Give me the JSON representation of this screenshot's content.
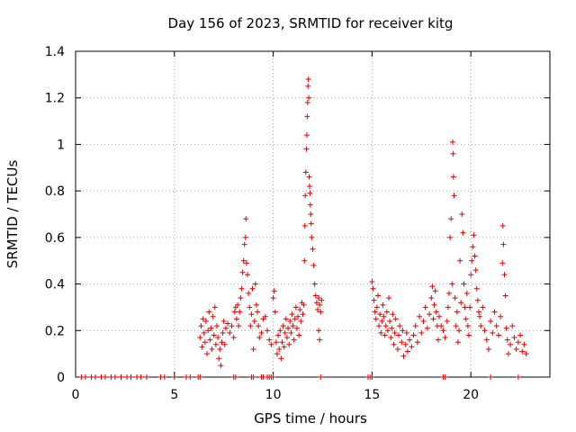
{
  "chart_data": {
    "type": "scatter",
    "title": "Day 156 of 2023, SRMTID for receiver kitg",
    "xlabel": "GPS time / hours",
    "ylabel": "SRMTID / TECUs",
    "xlim": [
      0,
      24
    ],
    "ylim": [
      0,
      1.4
    ],
    "xticks": [
      0,
      5,
      10,
      15,
      20
    ],
    "yticks": [
      0,
      0.2,
      0.4,
      0.6,
      0.8,
      1,
      1.2,
      1.4
    ],
    "xtick_labels": [
      "0",
      "5",
      "10",
      "15",
      "20"
    ],
    "ytick_labels": [
      "0",
      "0.2",
      "0.4",
      "0.6",
      "0.8",
      "1",
      "1.2",
      "1.4"
    ],
    "grid": true,
    "marker": "+",
    "color": "#e00000",
    "series": [
      {
        "name": "SRMTID",
        "points": [
          [
            0.3,
            0
          ],
          [
            0.5,
            0
          ],
          [
            0.8,
            0
          ],
          [
            1.0,
            0
          ],
          [
            1.3,
            0
          ],
          [
            1.5,
            0
          ],
          [
            1.8,
            0
          ],
          [
            2.0,
            0
          ],
          [
            2.3,
            0
          ],
          [
            2.6,
            0
          ],
          [
            2.8,
            0
          ],
          [
            3.1,
            0
          ],
          [
            3.3,
            0
          ],
          [
            3.6,
            0
          ],
          [
            4.3,
            0
          ],
          [
            4.5,
            0
          ],
          [
            5.0,
            0
          ],
          [
            5.6,
            0
          ],
          [
            5.8,
            0
          ],
          [
            6.2,
            0
          ],
          [
            6.3,
            0
          ],
          [
            8.0,
            0
          ],
          [
            8.1,
            0
          ],
          [
            8.9,
            0
          ],
          [
            9.0,
            0
          ],
          [
            9.4,
            0
          ],
          [
            9.5,
            0
          ],
          [
            9.7,
            0
          ],
          [
            9.8,
            0
          ],
          [
            9.9,
            0
          ],
          [
            10.0,
            0
          ],
          [
            12.4,
            0
          ],
          [
            14.8,
            0
          ],
          [
            14.9,
            0
          ],
          [
            15.0,
            0
          ],
          [
            18.6,
            0
          ],
          [
            18.7,
            0
          ],
          [
            21.0,
            0
          ],
          [
            22.4,
            0
          ],
          [
            6.3,
            0.17
          ],
          [
            6.35,
            0.22
          ],
          [
            6.4,
            0.13
          ],
          [
            6.45,
            0.25
          ],
          [
            6.5,
            0.19
          ],
          [
            6.55,
            0.15
          ],
          [
            6.6,
            0.24
          ],
          [
            6.65,
            0.1
          ],
          [
            6.7,
            0.2
          ],
          [
            6.75,
            0.28
          ],
          [
            6.8,
            0.16
          ],
          [
            6.85,
            0.21
          ],
          [
            6.9,
            0.12
          ],
          [
            6.95,
            0.26
          ],
          [
            7.0,
            0.18
          ],
          [
            7.05,
            0.3
          ],
          [
            7.1,
            0.14
          ],
          [
            7.15,
            0.22
          ],
          [
            7.2,
            0.17
          ],
          [
            7.25,
            0.08
          ],
          [
            7.3,
            0.12
          ],
          [
            7.35,
            0.05
          ],
          [
            7.4,
            0.15
          ],
          [
            7.45,
            0.19
          ],
          [
            7.5,
            0.24
          ],
          [
            7.55,
            0.14
          ],
          [
            7.6,
            0.21
          ],
          [
            7.7,
            0.23
          ],
          [
            7.8,
            0.19
          ],
          [
            7.9,
            0.22
          ],
          [
            8.0,
            0.17
          ],
          [
            8.05,
            0.28
          ],
          [
            8.1,
            0.3
          ],
          [
            8.15,
            0.25
          ],
          [
            8.2,
            0.31
          ],
          [
            8.25,
            0.22
          ],
          [
            8.3,
            0.28
          ],
          [
            8.35,
            0.34
          ],
          [
            8.4,
            0.38
          ],
          [
            8.45,
            0.45
          ],
          [
            8.5,
            0.5
          ],
          [
            8.55,
            0.57
          ],
          [
            8.6,
            0.6
          ],
          [
            8.62,
            0.68
          ],
          [
            8.65,
            0.49
          ],
          [
            8.7,
            0.44
          ],
          [
            8.75,
            0.36
          ],
          [
            8.8,
            0.3
          ],
          [
            8.85,
            0.22
          ],
          [
            8.9,
            0.27
          ],
          [
            8.95,
            0.38
          ],
          [
            9.0,
            0.12
          ],
          [
            9.05,
            0.24
          ],
          [
            9.1,
            0.4
          ],
          [
            9.15,
            0.31
          ],
          [
            9.2,
            0.28
          ],
          [
            9.25,
            0.22
          ],
          [
            9.3,
            0.17
          ],
          [
            9.4,
            0.19
          ],
          [
            9.5,
            0.25
          ],
          [
            9.6,
            0.26
          ],
          [
            9.7,
            0.2
          ],
          [
            9.8,
            0.16
          ],
          [
            9.9,
            0.14
          ],
          [
            10.0,
            0.34
          ],
          [
            10.05,
            0.37
          ],
          [
            10.1,
            0.28
          ],
          [
            10.15,
            0.15
          ],
          [
            10.2,
            0.1
          ],
          [
            10.25,
            0.18
          ],
          [
            10.3,
            0.12
          ],
          [
            10.35,
            0.2
          ],
          [
            10.4,
            0.08
          ],
          [
            10.45,
            0.15
          ],
          [
            10.5,
            0.22
          ],
          [
            10.55,
            0.13
          ],
          [
            10.6,
            0.19
          ],
          [
            10.65,
            0.25
          ],
          [
            10.7,
            0.17
          ],
          [
            10.75,
            0.21
          ],
          [
            10.8,
            0.14
          ],
          [
            10.85,
            0.24
          ],
          [
            10.9,
            0.19
          ],
          [
            10.95,
            0.27
          ],
          [
            11.0,
            0.22
          ],
          [
            11.05,
            0.16
          ],
          [
            11.1,
            0.25
          ],
          [
            11.15,
            0.3
          ],
          [
            11.2,
            0.21
          ],
          [
            11.25,
            0.26
          ],
          [
            11.3,
            0.18
          ],
          [
            11.35,
            0.29
          ],
          [
            11.4,
            0.24
          ],
          [
            11.45,
            0.32
          ],
          [
            11.5,
            0.27
          ],
          [
            11.55,
            0.31
          ],
          [
            11.58,
            0.5
          ],
          [
            11.6,
            0.65
          ],
          [
            11.62,
            0.78
          ],
          [
            11.65,
            0.88
          ],
          [
            11.68,
            0.98
          ],
          [
            11.7,
            1.04
          ],
          [
            11.72,
            1.12
          ],
          [
            11.74,
            1.18
          ],
          [
            11.76,
            1.25
          ],
          [
            11.78,
            1.28
          ],
          [
            11.8,
            1.2
          ],
          [
            11.82,
            0.86
          ],
          [
            11.84,
            0.82
          ],
          [
            11.86,
            0.79
          ],
          [
            11.88,
            0.74
          ],
          [
            11.9,
            0.7
          ],
          [
            11.92,
            0.66
          ],
          [
            11.95,
            0.6
          ],
          [
            12.0,
            0.55
          ],
          [
            12.05,
            0.48
          ],
          [
            12.1,
            0.4
          ],
          [
            12.15,
            0.35
          ],
          [
            12.2,
            0.32
          ],
          [
            12.25,
            0.29
          ],
          [
            12.3,
            0.34
          ],
          [
            12.35,
            0.31
          ],
          [
            12.4,
            0.28
          ],
          [
            12.45,
            0.33
          ],
          [
            12.3,
            0.2
          ],
          [
            12.35,
            0.16
          ],
          [
            15.0,
            0.41
          ],
          [
            15.05,
            0.38
          ],
          [
            15.1,
            0.33
          ],
          [
            15.15,
            0.28
          ],
          [
            15.2,
            0.25
          ],
          [
            15.25,
            0.3
          ],
          [
            15.3,
            0.35
          ],
          [
            15.35,
            0.22
          ],
          [
            15.4,
            0.27
          ],
          [
            15.45,
            0.19
          ],
          [
            15.5,
            0.24
          ],
          [
            15.55,
            0.31
          ],
          [
            15.6,
            0.26
          ],
          [
            15.65,
            0.18
          ],
          [
            15.7,
            0.22
          ],
          [
            15.75,
            0.28
          ],
          [
            15.8,
            0.2
          ],
          [
            15.85,
            0.34
          ],
          [
            15.9,
            0.24
          ],
          [
            15.95,
            0.17
          ],
          [
            16.0,
            0.21
          ],
          [
            16.05,
            0.27
          ],
          [
            16.1,
            0.14
          ],
          [
            16.15,
            0.19
          ],
          [
            16.2,
            0.25
          ],
          [
            16.3,
            0.12
          ],
          [
            16.35,
            0.18
          ],
          [
            16.4,
            0.22
          ],
          [
            16.5,
            0.15
          ],
          [
            16.55,
            0.2
          ],
          [
            16.6,
            0.09
          ],
          [
            16.7,
            0.14
          ],
          [
            16.75,
            0.19
          ],
          [
            16.8,
            0.11
          ],
          [
            16.9,
            0.16
          ],
          [
            17.0,
            0.13
          ],
          [
            17.1,
            0.18
          ],
          [
            17.2,
            0.22
          ],
          [
            17.3,
            0.15
          ],
          [
            17.4,
            0.26
          ],
          [
            17.5,
            0.19
          ],
          [
            17.6,
            0.24
          ],
          [
            17.7,
            0.3
          ],
          [
            17.8,
            0.21
          ],
          [
            17.9,
            0.27
          ],
          [
            18.0,
            0.34
          ],
          [
            18.05,
            0.39
          ],
          [
            18.1,
            0.25
          ],
          [
            18.15,
            0.31
          ],
          [
            18.2,
            0.37
          ],
          [
            18.25,
            0.28
          ],
          [
            18.3,
            0.22
          ],
          [
            18.35,
            0.16
          ],
          [
            18.4,
            0.26
          ],
          [
            18.5,
            0.22
          ],
          [
            18.6,
            0.2
          ],
          [
            18.7,
            0.17
          ],
          [
            18.8,
            0.24
          ],
          [
            18.85,
            0.3
          ],
          [
            18.9,
            0.36
          ],
          [
            18.95,
            0.6
          ],
          [
            19.0,
            0.68
          ],
          [
            19.05,
            0.4
          ],
          [
            19.08,
            1.01
          ],
          [
            19.1,
            0.96
          ],
          [
            19.12,
            0.86
          ],
          [
            19.15,
            0.78
          ],
          [
            19.2,
            0.34
          ],
          [
            19.25,
            0.22
          ],
          [
            19.3,
            0.28
          ],
          [
            19.35,
            0.15
          ],
          [
            19.4,
            0.2
          ],
          [
            19.45,
            0.5
          ],
          [
            19.5,
            0.32
          ],
          [
            19.55,
            0.7
          ],
          [
            19.6,
            0.62
          ],
          [
            19.65,
            0.4
          ],
          [
            19.7,
            0.3
          ],
          [
            19.75,
            0.25
          ],
          [
            19.8,
            0.36
          ],
          [
            19.85,
            0.22
          ],
          [
            19.9,
            0.18
          ],
          [
            19.95,
            0.3
          ],
          [
            20.0,
            0.44
          ],
          [
            20.05,
            0.5
          ],
          [
            20.1,
            0.56
          ],
          [
            20.15,
            0.61
          ],
          [
            20.2,
            0.52
          ],
          [
            20.25,
            0.46
          ],
          [
            20.3,
            0.38
          ],
          [
            20.35,
            0.33
          ],
          [
            20.4,
            0.28
          ],
          [
            20.45,
            0.26
          ],
          [
            20.5,
            0.22
          ],
          [
            20.6,
            0.3
          ],
          [
            20.7,
            0.2
          ],
          [
            20.8,
            0.16
          ],
          [
            20.9,
            0.12
          ],
          [
            21.0,
            0.24
          ],
          [
            21.1,
            0.19
          ],
          [
            21.2,
            0.28
          ],
          [
            21.3,
            0.22
          ],
          [
            21.4,
            0.18
          ],
          [
            21.5,
            0.26
          ],
          [
            21.6,
            0.49
          ],
          [
            21.62,
            0.65
          ],
          [
            21.65,
            0.57
          ],
          [
            21.7,
            0.44
          ],
          [
            21.75,
            0.35
          ],
          [
            21.8,
            0.21
          ],
          [
            21.85,
            0.16
          ],
          [
            21.9,
            0.1
          ],
          [
            22.0,
            0.14
          ],
          [
            22.1,
            0.22
          ],
          [
            22.2,
            0.17
          ],
          [
            22.3,
            0.12
          ],
          [
            22.4,
            0.15
          ],
          [
            22.5,
            0.18
          ],
          [
            22.6,
            0.11
          ],
          [
            22.7,
            0.14
          ],
          [
            22.8,
            0.1
          ]
        ]
      }
    ]
  }
}
